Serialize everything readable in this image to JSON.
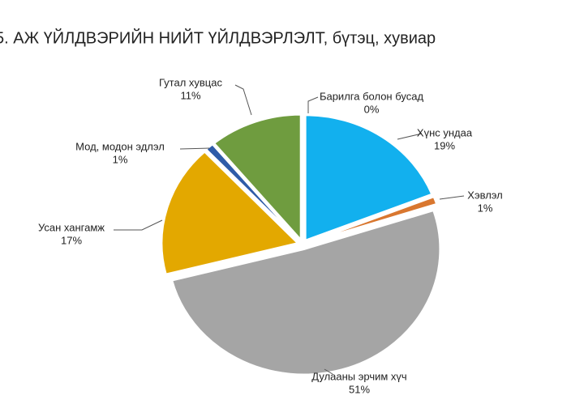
{
  "chart_data": {
    "type": "pie",
    "title": "5. АЖ ҮЙЛДВЭРИЙН НИЙТ ҮЙЛДВЭРЛЭЛТ, бүтэц, хувиар",
    "categories": [
      "Барилга болон бусад",
      "Хүнс ундаа",
      "Хэвлэл",
      "Дулааны эрчим хүч",
      "Усан хангамж",
      "Мод, модон эдлэл",
      "Гутал хувцас"
    ],
    "values": [
      0,
      19,
      1,
      51,
      17,
      1,
      11
    ],
    "value_labels": [
      "0%",
      "19%",
      "1%",
      "51%",
      "17%",
      "1%",
      "11%"
    ],
    "colors": [
      "#7f7f7f",
      "#12b0ee",
      "#d9772f",
      "#a5a5a5",
      "#e3a800",
      "#2f5ca8",
      "#6f9c3f"
    ]
  }
}
